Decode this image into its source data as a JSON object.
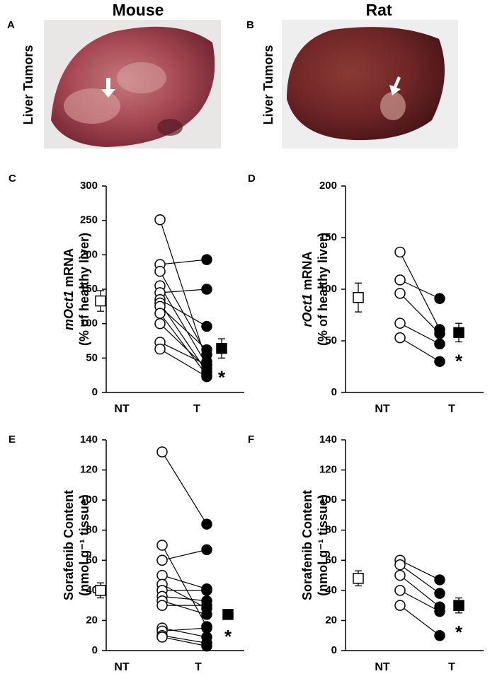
{
  "header": {
    "columns": [
      "Mouse",
      "Rat"
    ]
  },
  "photos": [
    {
      "letter": "A",
      "caption": "Liver Tumors"
    },
    {
      "letter": "B",
      "caption": "Liver Tumors"
    }
  ],
  "chart_data": [
    {
      "type": "paired",
      "letter": "C",
      "ylabel": [
        [
          {
            "text": "mOct1",
            "italic": true
          },
          {
            "text": "mRNA"
          }
        ],
        [
          {
            "text": "(% of healthy liver)"
          }
        ]
      ],
      "categories": [
        "NT",
        "T"
      ],
      "paired": [
        [
          251,
          186,
          176,
          155,
          145,
          135,
          130,
          125,
          115,
          100,
          73,
          63
        ],
        [
          45,
          193,
          55,
          40,
          150,
          96,
          30,
          62,
          25,
          35,
          40,
          23
        ]
      ],
      "summary": [
        {
          "value": 133,
          "error": 15
        },
        {
          "value": 64,
          "error": 14
        }
      ],
      "annotation": "*",
      "ylim": [
        0,
        300
      ],
      "yticks": [
        0,
        50,
        100,
        150,
        200,
        250,
        300
      ]
    },
    {
      "type": "paired",
      "letter": "D",
      "ylabel": [
        [
          {
            "text": "rOct1",
            "italic": true
          },
          {
            "text": "mRNA"
          }
        ],
        [
          {
            "text": "(% of healthy liver)"
          }
        ]
      ],
      "categories": [
        "NT",
        "T"
      ],
      "paired": [
        [
          136,
          109,
          96,
          67,
          53
        ],
        [
          61,
          91,
          57,
          47,
          30
        ]
      ],
      "summary": [
        {
          "value": 92,
          "error": 14
        },
        {
          "value": 58,
          "error": 9
        }
      ],
      "annotation": "*",
      "ylim": [
        0,
        200
      ],
      "yticks": [
        0,
        50,
        100,
        150,
        200
      ]
    },
    {
      "type": "paired",
      "letter": "E",
      "ylabel": [
        [
          {
            "text": "Sorafenib Content"
          }
        ],
        [
          {
            "text": "(nmol g⁻¹ tissue)"
          }
        ]
      ],
      "categories": [
        "NT",
        "T"
      ],
      "paired": [
        [
          132,
          70,
          60,
          50,
          44,
          40,
          36,
          33,
          30,
          15,
          13,
          10,
          9
        ],
        [
          84,
          16,
          67,
          41,
          28,
          40,
          33,
          24,
          30,
          9,
          15,
          5,
          3
        ]
      ],
      "summary": [
        {
          "value": 40,
          "error": 5
        },
        {
          "value": 24,
          "error": 2
        }
      ],
      "annotation": "*",
      "ylim": [
        0,
        140
      ],
      "yticks": [
        0,
        20,
        40,
        60,
        80,
        100,
        120,
        140
      ]
    },
    {
      "type": "paired",
      "letter": "F",
      "ylabel": [
        [
          {
            "text": "Sorafenib Content"
          }
        ],
        [
          {
            "text": "(nmol g⁻¹ tissue)"
          }
        ]
      ],
      "categories": [
        "NT",
        "T"
      ],
      "paired": [
        [
          60,
          57,
          50,
          40,
          30
        ],
        [
          47,
          38,
          29,
          26,
          10
        ]
      ],
      "summary": [
        {
          "value": 48,
          "error": 5
        },
        {
          "value": 30,
          "error": 5
        }
      ],
      "annotation": "*",
      "ylim": [
        0,
        140
      ],
      "yticks": [
        0,
        20,
        40,
        60,
        80,
        100,
        120,
        140
      ]
    }
  ]
}
